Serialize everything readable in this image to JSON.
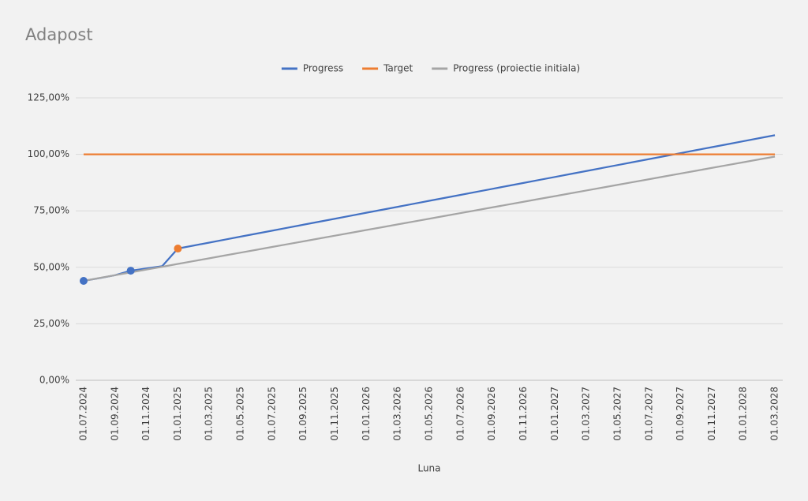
{
  "chart_data": {
    "type": "line",
    "title": "Adapost",
    "x_label": "Luna",
    "categories": [
      "01.07.2024",
      null,
      "01.09.2024",
      null,
      "01.11.2024",
      null,
      "01.01.2025",
      null,
      "01.03.2025",
      null,
      "01.05.2025",
      null,
      "01.07.2025",
      null,
      "01.09.2025",
      null,
      "01.11.2025",
      null,
      "01.01.2026",
      null,
      "01.03.2026",
      null,
      "01.05.2026",
      null,
      "01.07.2026",
      null,
      "01.09.2026",
      null,
      "01.11.2026",
      null,
      "01.01.2027",
      null,
      "01.03.2027",
      null,
      "01.05.2027",
      null,
      "01.07.2027",
      null,
      "01.09.2027",
      null,
      "01.11.2027",
      null,
      "01.01.2028",
      null,
      "01.03.2028"
    ],
    "series": [
      {
        "name": "Progress",
        "color": "#4472c4",
        "markers": [
          0,
          3,
          6
        ],
        "marker_colors": [
          "#4472c4",
          "#4472c4",
          "#ed7d31"
        ],
        "values": [
          44,
          45.2,
          46.5,
          48.5,
          49.5,
          50.5,
          58.3,
          59.62,
          60.94,
          62.26,
          63.58,
          64.9,
          66.22,
          67.54,
          68.86,
          70.18,
          71.5,
          72.82,
          74.14,
          75.46,
          76.78,
          78.1,
          79.42,
          80.74,
          82.06,
          83.38,
          84.7,
          86.02,
          87.34,
          88.66,
          89.98,
          91.3,
          92.62,
          93.94,
          95.26,
          96.58,
          97.9,
          99.22,
          100.54,
          101.86,
          103.18,
          104.5,
          105.82,
          107.14,
          108.46
        ]
      },
      {
        "name": "Target",
        "color": "#ed7d31",
        "values": [
          100,
          100,
          100,
          100,
          100,
          100,
          100,
          100,
          100,
          100,
          100,
          100,
          100,
          100,
          100,
          100,
          100,
          100,
          100,
          100,
          100,
          100,
          100,
          100,
          100,
          100,
          100,
          100,
          100,
          100,
          100,
          100,
          100,
          100,
          100,
          100,
          100,
          100,
          100,
          100,
          100,
          100,
          100,
          100,
          100
        ]
      },
      {
        "name": "Progress (proiectie initiala)",
        "color": "#a5a5a5",
        "values": [
          44,
          45.25,
          46.5,
          47.75,
          49,
          50.25,
          51.5,
          52.75,
          54,
          55.25,
          56.5,
          57.75,
          59,
          60.25,
          61.5,
          62.75,
          64,
          65.25,
          66.5,
          67.75,
          69,
          70.25,
          71.5,
          72.75,
          74,
          75.25,
          76.5,
          77.75,
          79,
          80.25,
          81.5,
          82.75,
          84,
          85.25,
          86.5,
          87.75,
          89,
          90.25,
          91.5,
          92.75,
          94,
          95.25,
          96.5,
          97.75,
          99
        ]
      }
    ],
    "ylim": [
      0,
      125
    ],
    "yticks": [
      {
        "value": 0,
        "label": "0,00%"
      },
      {
        "value": 25,
        "label": "25,00%"
      },
      {
        "value": 50,
        "label": "50,00%"
      },
      {
        "value": 75,
        "label": "75,00%"
      },
      {
        "value": 100,
        "label": "100,00%"
      },
      {
        "value": 125,
        "label": "125,00%"
      }
    ],
    "grid": true,
    "legend": "top"
  }
}
